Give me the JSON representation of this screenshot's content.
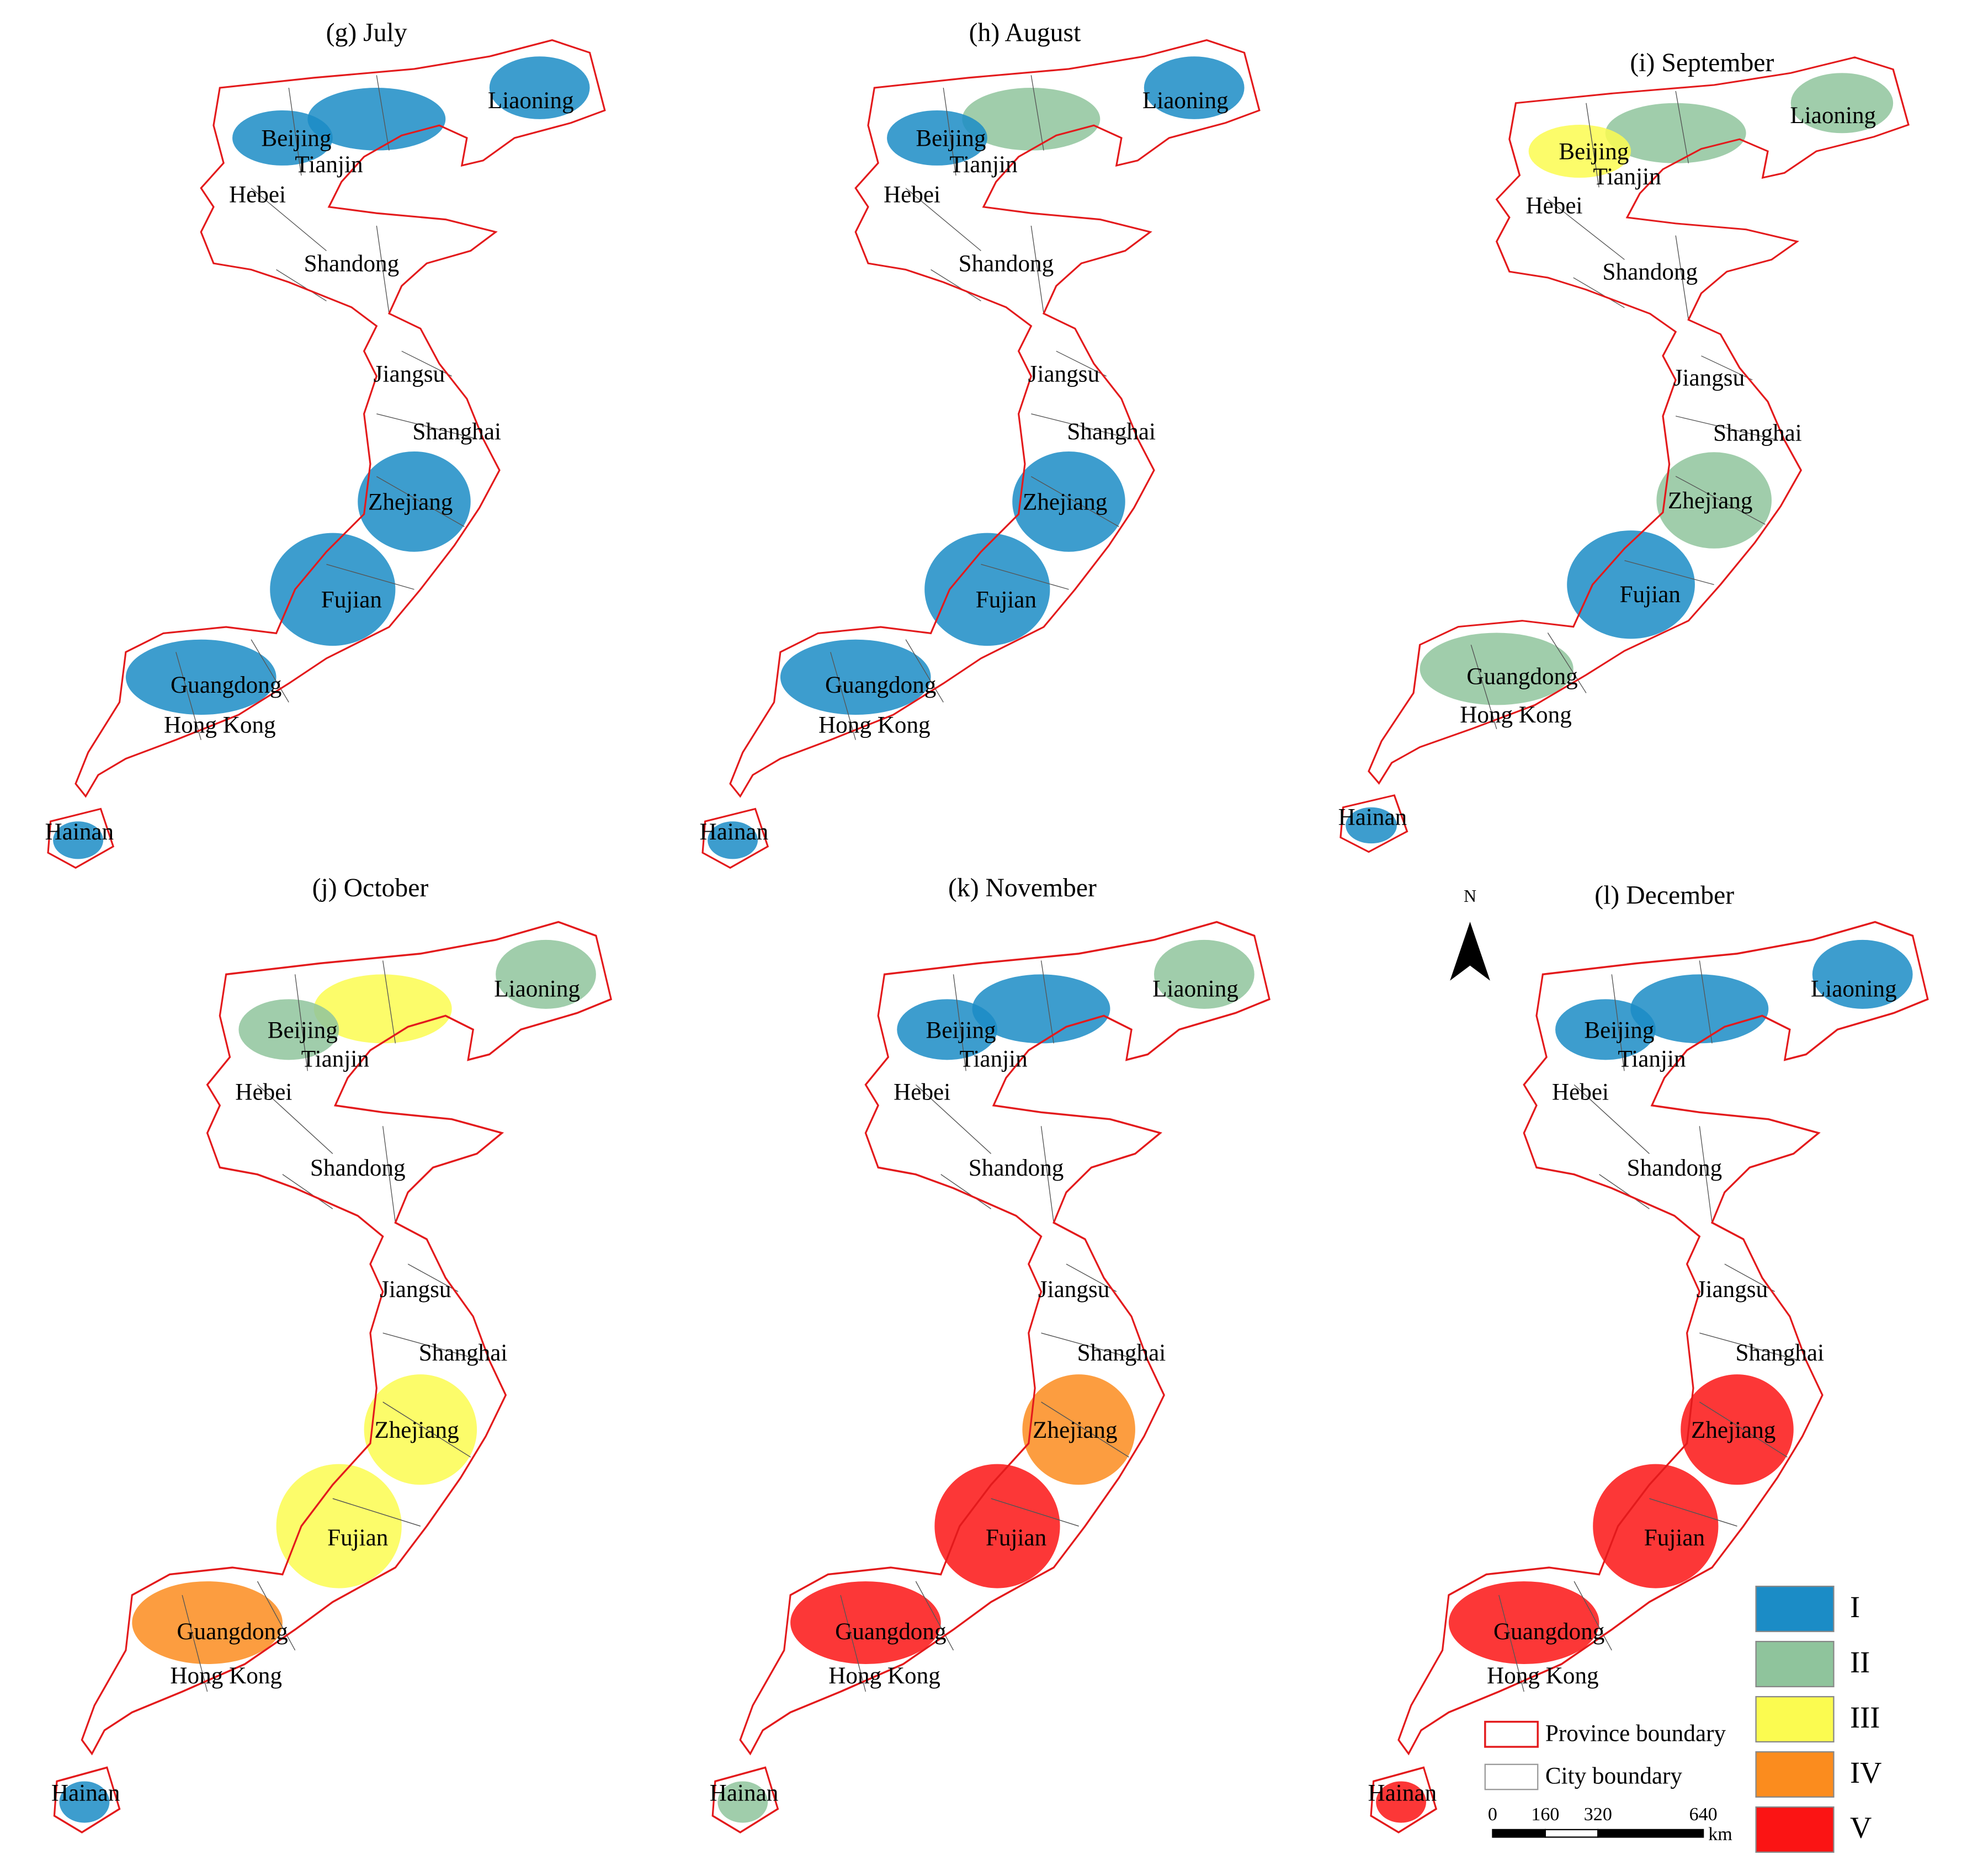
{
  "panels": [
    {
      "title": "(g) July",
      "labels": [
        "Liaoning",
        "Beijing",
        "Tianjin",
        "Hebei",
        "Shandong",
        "Jiangsu",
        "Shanghai",
        "Zhejiang",
        "Fujian",
        "Guangdong",
        "Hong Kong",
        "Hainan"
      ]
    },
    {
      "title": "(h) August",
      "labels": [
        "Liaoning",
        "Beijing",
        "Tianjin",
        "Hebei",
        "Shandong",
        "Jiangsu",
        "Shanghai",
        "Zhejiang",
        "Fujian",
        "Guangdong",
        "Hong Kong",
        "Hainan"
      ]
    },
    {
      "title": "(i) September",
      "labels": [
        "Liaoning",
        "Beijing",
        "Tianjin",
        "Hebei",
        "Shandong",
        "Jiangsu",
        "Shanghai",
        "Zhejiang",
        "Fujian",
        "Guangdong",
        "Hong Kong",
        "Hainan"
      ]
    },
    {
      "title": "(j) October",
      "labels": [
        "Liaoning",
        "Beijing",
        "Tianjin",
        "Hebei",
        "Shandong",
        "Jiangsu",
        "Shanghai",
        "Zhejiang",
        "Fujian",
        "Guangdong",
        "Hong Kong",
        "Hainan"
      ]
    },
    {
      "title": "(k) November",
      "labels": [
        "Liaoning",
        "Beijing",
        "Tianjin",
        "Hebei",
        "Shandong",
        "Jiangsu",
        "Shanghai",
        "Zhejiang",
        "Fujian",
        "Guangdong",
        "Hong Kong",
        "Hainan"
      ]
    },
    {
      "title": "(l) December",
      "labels": [
        "Liaoning",
        "Beijing",
        "Tianjin",
        "Hebei",
        "Shandong",
        "Jiangsu",
        "Shanghai",
        "Zhejiang",
        "Fujian",
        "Guangdong",
        "Hong Kong",
        "Hainan"
      ]
    }
  ],
  "legend": {
    "classes": [
      {
        "label": "I",
        "color": "#1b8cc6"
      },
      {
        "label": "II",
        "color": "#8fc49c"
      },
      {
        "label": "III",
        "color": "#fbfb50"
      },
      {
        "label": "IV",
        "color": "#fb8c1e"
      },
      {
        "label": "V",
        "color": "#fb1414"
      }
    ],
    "province_boundary": "Province boundary",
    "city_boundary": "City boundary"
  },
  "scale_bar": {
    "ticks": [
      0,
      160,
      320,
      640
    ],
    "unit": "km"
  },
  "north_arrow": "N"
}
